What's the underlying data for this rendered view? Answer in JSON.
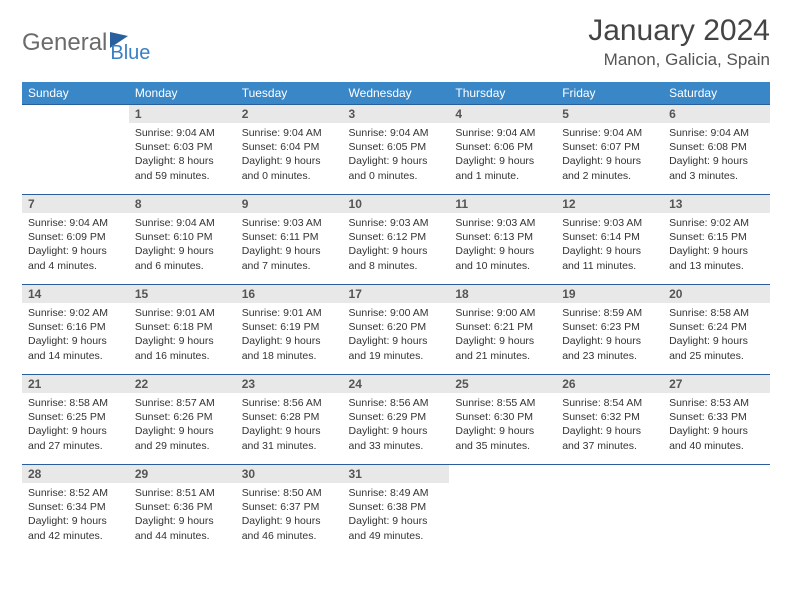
{
  "brand": {
    "name": "General",
    "sub": "Blue"
  },
  "title": "January 2024",
  "location": "Manon, Galicia, Spain",
  "colors": {
    "header_bg": "#3a87c8",
    "header_text": "#ffffff",
    "cell_border": "#2a5f9e",
    "daynum_bg": "#e8e8e8",
    "text": "#333333",
    "logo_gray": "#6b6b6b",
    "logo_blue": "#3a7fc4"
  },
  "day_headers": [
    "Sunday",
    "Monday",
    "Tuesday",
    "Wednesday",
    "Thursday",
    "Friday",
    "Saturday"
  ],
  "weeks": [
    [
      null,
      {
        "n": "1",
        "sr": "9:04 AM",
        "ss": "6:03 PM",
        "dl": "8 hours and 59 minutes."
      },
      {
        "n": "2",
        "sr": "9:04 AM",
        "ss": "6:04 PM",
        "dl": "9 hours and 0 minutes."
      },
      {
        "n": "3",
        "sr": "9:04 AM",
        "ss": "6:05 PM",
        "dl": "9 hours and 0 minutes."
      },
      {
        "n": "4",
        "sr": "9:04 AM",
        "ss": "6:06 PM",
        "dl": "9 hours and 1 minute."
      },
      {
        "n": "5",
        "sr": "9:04 AM",
        "ss": "6:07 PM",
        "dl": "9 hours and 2 minutes."
      },
      {
        "n": "6",
        "sr": "9:04 AM",
        "ss": "6:08 PM",
        "dl": "9 hours and 3 minutes."
      }
    ],
    [
      {
        "n": "7",
        "sr": "9:04 AM",
        "ss": "6:09 PM",
        "dl": "9 hours and 4 minutes."
      },
      {
        "n": "8",
        "sr": "9:04 AM",
        "ss": "6:10 PM",
        "dl": "9 hours and 6 minutes."
      },
      {
        "n": "9",
        "sr": "9:03 AM",
        "ss": "6:11 PM",
        "dl": "9 hours and 7 minutes."
      },
      {
        "n": "10",
        "sr": "9:03 AM",
        "ss": "6:12 PM",
        "dl": "9 hours and 8 minutes."
      },
      {
        "n": "11",
        "sr": "9:03 AM",
        "ss": "6:13 PM",
        "dl": "9 hours and 10 minutes."
      },
      {
        "n": "12",
        "sr": "9:03 AM",
        "ss": "6:14 PM",
        "dl": "9 hours and 11 minutes."
      },
      {
        "n": "13",
        "sr": "9:02 AM",
        "ss": "6:15 PM",
        "dl": "9 hours and 13 minutes."
      }
    ],
    [
      {
        "n": "14",
        "sr": "9:02 AM",
        "ss": "6:16 PM",
        "dl": "9 hours and 14 minutes."
      },
      {
        "n": "15",
        "sr": "9:01 AM",
        "ss": "6:18 PM",
        "dl": "9 hours and 16 minutes."
      },
      {
        "n": "16",
        "sr": "9:01 AM",
        "ss": "6:19 PM",
        "dl": "9 hours and 18 minutes."
      },
      {
        "n": "17",
        "sr": "9:00 AM",
        "ss": "6:20 PM",
        "dl": "9 hours and 19 minutes."
      },
      {
        "n": "18",
        "sr": "9:00 AM",
        "ss": "6:21 PM",
        "dl": "9 hours and 21 minutes."
      },
      {
        "n": "19",
        "sr": "8:59 AM",
        "ss": "6:23 PM",
        "dl": "9 hours and 23 minutes."
      },
      {
        "n": "20",
        "sr": "8:58 AM",
        "ss": "6:24 PM",
        "dl": "9 hours and 25 minutes."
      }
    ],
    [
      {
        "n": "21",
        "sr": "8:58 AM",
        "ss": "6:25 PM",
        "dl": "9 hours and 27 minutes."
      },
      {
        "n": "22",
        "sr": "8:57 AM",
        "ss": "6:26 PM",
        "dl": "9 hours and 29 minutes."
      },
      {
        "n": "23",
        "sr": "8:56 AM",
        "ss": "6:28 PM",
        "dl": "9 hours and 31 minutes."
      },
      {
        "n": "24",
        "sr": "8:56 AM",
        "ss": "6:29 PM",
        "dl": "9 hours and 33 minutes."
      },
      {
        "n": "25",
        "sr": "8:55 AM",
        "ss": "6:30 PM",
        "dl": "9 hours and 35 minutes."
      },
      {
        "n": "26",
        "sr": "8:54 AM",
        "ss": "6:32 PM",
        "dl": "9 hours and 37 minutes."
      },
      {
        "n": "27",
        "sr": "8:53 AM",
        "ss": "6:33 PM",
        "dl": "9 hours and 40 minutes."
      }
    ],
    [
      {
        "n": "28",
        "sr": "8:52 AM",
        "ss": "6:34 PM",
        "dl": "9 hours and 42 minutes."
      },
      {
        "n": "29",
        "sr": "8:51 AM",
        "ss": "6:36 PM",
        "dl": "9 hours and 44 minutes."
      },
      {
        "n": "30",
        "sr": "8:50 AM",
        "ss": "6:37 PM",
        "dl": "9 hours and 46 minutes."
      },
      {
        "n": "31",
        "sr": "8:49 AM",
        "ss": "6:38 PM",
        "dl": "9 hours and 49 minutes."
      },
      null,
      null,
      null
    ]
  ],
  "labels": {
    "sunrise": "Sunrise:",
    "sunset": "Sunset:",
    "daylight": "Daylight:"
  }
}
